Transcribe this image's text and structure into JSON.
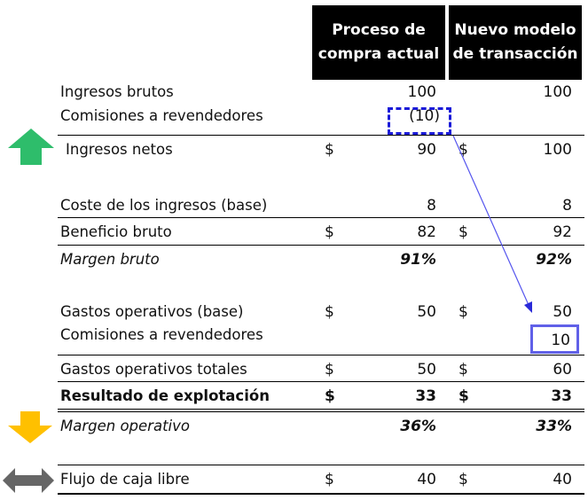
{
  "headers": {
    "col1": "Proceso de\ncompra actual",
    "col2": "Nuevo modelo\nde transacción"
  },
  "currency": "$",
  "rows": {
    "gross_revenue": {
      "label": "Ingresos brutos",
      "v1": "100",
      "v2": "100"
    },
    "reseller_commissions_rev": {
      "label": "Comisiones a revendedores",
      "v1": "(10)"
    },
    "net_revenue": {
      "label": "Ingresos netos",
      "v1": "90",
      "v2": "100"
    },
    "cost_of_revenue": {
      "label": "Coste de los ingresos (base)",
      "v1": "8",
      "v2": "8"
    },
    "gross_profit": {
      "label": "Beneficio bruto",
      "v1": "82",
      "v2": "92"
    },
    "gross_margin": {
      "label": "Margen bruto",
      "v1": "91%",
      "v2": "92%"
    },
    "opex_base": {
      "label": "Gastos operativos (base)",
      "v1": "50",
      "v2": "50"
    },
    "reseller_commissions_opex": {
      "label": "Comisiones a revendedores",
      "v2": "10"
    },
    "total_opex": {
      "label": "Gastos operativos totales",
      "v1": "50",
      "v2": "60"
    },
    "operating_income": {
      "label": "Resultado de explotación",
      "v1": "33",
      "v2": "33"
    },
    "operating_margin": {
      "label": "Margen operativo",
      "v1": "36%",
      "v2": "33%"
    },
    "free_cash_flow": {
      "label": "Flujo de caja libre",
      "v1": "40",
      "v2": "40"
    }
  },
  "colors": {
    "header_bg": "#000000",
    "up_arrow": "#2ebd6b",
    "down_arrow": "#ffc000",
    "neutral_arrow": "#666666",
    "highlight_dashed": "#1a1ad8",
    "highlight_solid": "#6060e8",
    "connector": "#5555ee"
  },
  "icons": {
    "net_revenue": "up-arrow-icon",
    "operating_margin": "down-arrow-icon",
    "free_cash_flow": "double-arrow-icon"
  }
}
